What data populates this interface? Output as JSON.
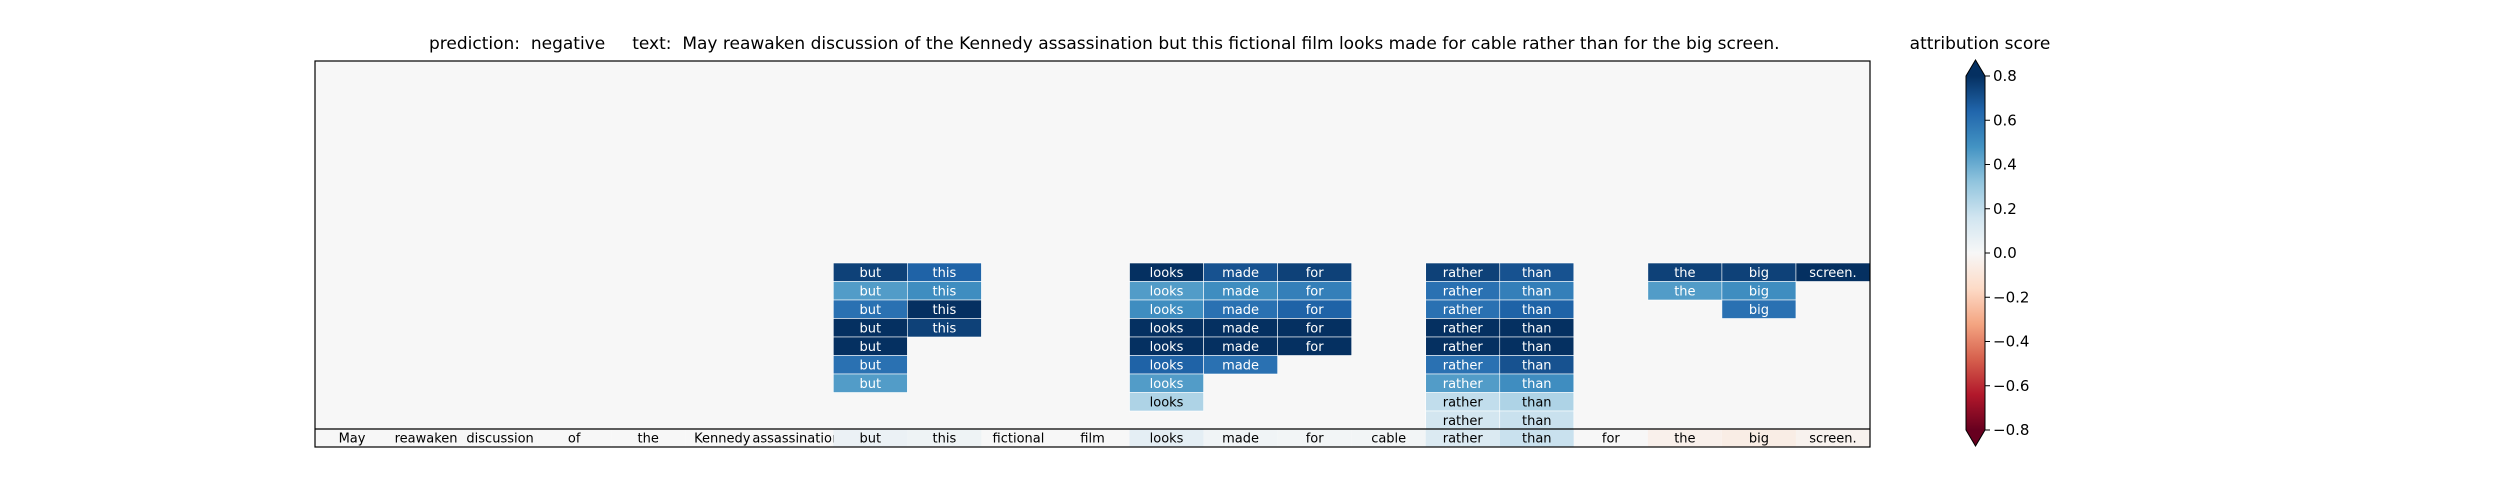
{
  "chart_data": {
    "type": "heatmap",
    "title_prediction_label": "prediction:",
    "title_prediction_value": "negative",
    "title_text_label": "text:",
    "title_text_value": "May reawaken discussion of the Kennedy assassination but this fictional film looks made for cable rather than for the big screen.",
    "tokens": [
      "May",
      "reawaken",
      "discussion",
      "of",
      "the",
      "Kennedy",
      "assassination",
      "but",
      "this",
      "fictional",
      "film",
      "looks",
      "made",
      "for",
      "cable",
      "rather",
      "than",
      "for",
      "the",
      "big",
      "screen."
    ],
    "base_row_scores": [
      0.0,
      0.0,
      0.0,
      0.0,
      0.0,
      0.0,
      0.0,
      0.05,
      0.04,
      0.0,
      0.0,
      0.08,
      0.03,
      0.02,
      0.02,
      0.12,
      0.18,
      0.0,
      -0.04,
      -0.06,
      -0.03
    ],
    "segments": [
      {
        "token_indices": [
          7,
          8
        ],
        "rows": [
          [
            0.75,
            0.65
          ],
          [
            0.45,
            0.5
          ],
          [
            0.6,
            0.8
          ],
          [
            0.85,
            0.75
          ],
          [
            0.9,
            null
          ],
          [
            0.6,
            null
          ],
          [
            0.45,
            null
          ]
        ]
      },
      {
        "token_indices": [
          11,
          12,
          13
        ],
        "rows": [
          [
            0.8,
            0.7,
            0.75
          ],
          [
            0.45,
            0.5,
            0.55
          ],
          [
            0.5,
            0.6,
            0.65
          ],
          [
            0.85,
            0.8,
            0.85
          ],
          [
            0.9,
            0.85,
            0.9
          ],
          [
            0.65,
            0.6,
            null
          ],
          [
            0.45,
            null,
            null
          ],
          [
            0.25,
            null,
            null
          ]
        ]
      },
      {
        "token_indices": [
          15,
          16
        ],
        "rows": [
          [
            0.75,
            0.7
          ],
          [
            0.6,
            0.55
          ],
          [
            0.6,
            0.65
          ],
          [
            0.85,
            0.85
          ],
          [
            0.9,
            0.9
          ],
          [
            0.6,
            0.7
          ],
          [
            0.45,
            0.5
          ],
          [
            0.2,
            0.25
          ],
          [
            0.15,
            0.18
          ]
        ]
      },
      {
        "token_indices": [
          18,
          19,
          20
        ],
        "rows": [
          [
            0.75,
            0.75,
            0.8
          ],
          [
            0.45,
            0.5,
            null
          ],
          [
            null,
            0.6,
            null
          ]
        ]
      }
    ],
    "colorbar": {
      "label": "attribution score",
      "min": -0.8,
      "max": 0.8,
      "ticks": [
        0.8,
        0.6,
        0.4,
        0.2,
        0.0,
        -0.2,
        -0.4,
        -0.6,
        -0.8
      ],
      "tick_labels": [
        "0.8",
        "0.6",
        "0.4",
        "0.2",
        "0.0",
        "−0.2",
        "−0.4",
        "−0.6",
        "−0.8"
      ],
      "colormap": "RdBu"
    }
  }
}
